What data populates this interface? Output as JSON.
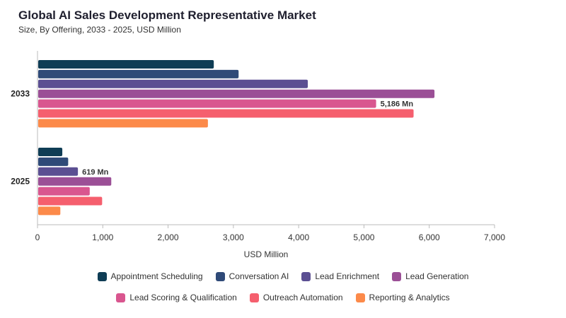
{
  "title": "Global AI Sales Development Representative Market",
  "subtitle": "Size, By Offering, 2033 - 2025, USD Million",
  "chart_data": {
    "type": "bar",
    "orientation": "horizontal",
    "categories": [
      "2033",
      "2025"
    ],
    "xlabel": "USD Million",
    "ylabel": "",
    "xlim": [
      0,
      7000
    ],
    "xticks": [
      0,
      1000,
      2000,
      3000,
      4000,
      5000,
      6000,
      7000
    ],
    "xtick_labels": [
      "0",
      "1,000",
      "2,000",
      "3,000",
      "4,000",
      "5,000",
      "6,000",
      "7,000"
    ],
    "grid": false,
    "legend_position": "bottom",
    "series": [
      {
        "name": "Appointment Scheduling",
        "color": "#0f3d55",
        "values": [
          2700,
          380
        ]
      },
      {
        "name": "Conversation AI",
        "color": "#2f4a78",
        "values": [
          3080,
          470
        ]
      },
      {
        "name": "Lead Enrichment",
        "color": "#5b4f92",
        "values": [
          4140,
          619
        ]
      },
      {
        "name": "Lead Generation",
        "color": "#9b4f96",
        "values": [
          6080,
          1130
        ]
      },
      {
        "name": "Lead Scoring & Qualification",
        "color": "#d9568f",
        "values": [
          5186,
          800
        ]
      },
      {
        "name": "Outreach Automation",
        "color": "#f55f6e",
        "values": [
          5760,
          990
        ]
      },
      {
        "name": "Reporting & Analytics",
        "color": "#fc8a4a",
        "values": [
          2610,
          350
        ]
      }
    ],
    "annotations": [
      {
        "category": "2033",
        "series": "Lead Scoring & Qualification",
        "text": "5,186 Mn"
      },
      {
        "category": "2025",
        "series": "Lead Enrichment",
        "text": "619 Mn"
      }
    ]
  }
}
